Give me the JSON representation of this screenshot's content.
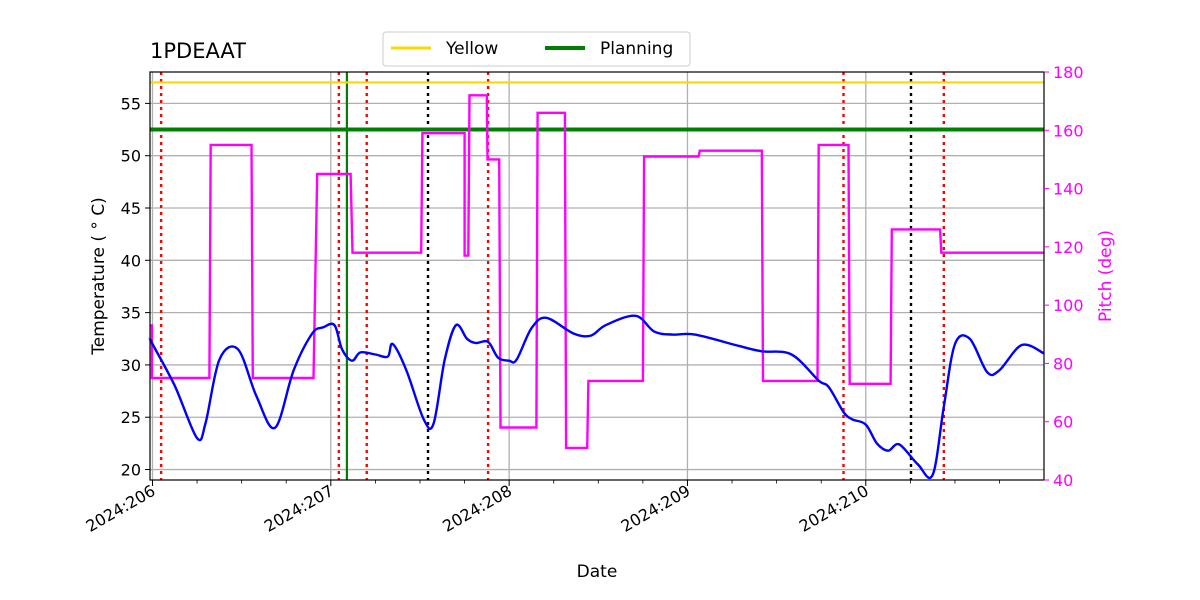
{
  "chart_data": {
    "type": "line",
    "title": "1PDEAAT",
    "xlabel": "Date",
    "ylabel": "Temperature ($^\\circ$C)",
    "ylabel_display": "Temperature ( ° C)",
    "y2label": "Pitch (deg)",
    "xlim": [
      "2024:205:23:40",
      "2024:210:23:59"
    ],
    "ylim": [
      19.0,
      58.0
    ],
    "y2lim": [
      40,
      180
    ],
    "grid": true,
    "legend_position": "top-center",
    "x_ticks": [
      "2024:206",
      "2024:207",
      "2024:208",
      "2024:209",
      "2024:210"
    ],
    "y_ticks": [
      20,
      25,
      30,
      35,
      40,
      45,
      50,
      55
    ],
    "y2_ticks": [
      40,
      60,
      80,
      100,
      120,
      140,
      160,
      180
    ],
    "colors": {
      "temperature": "#0000ff",
      "pitch": "#ff00ff",
      "yellow_limit": "#ffd700",
      "planning_limit": "#008000",
      "red_markers": "#ff0000",
      "black_markers": "#000000",
      "green_marker": "#008000"
    },
    "limits": [
      {
        "name": "Yellow",
        "value": 57.0
      },
      {
        "name": "Planning",
        "value": 52.5
      }
    ],
    "red_vertical_lines": [
      "2024:206:01:10",
      "2024:207:01:05",
      "2024:207:04:50",
      "2024:207:21:10",
      "2024:209:21:00",
      "2024:210:10:30"
    ],
    "black_vertical_lines": [
      "2024:207:13:05",
      "2024:210:06:05"
    ],
    "green_vertical_lines": [
      "2024:207:02:10"
    ],
    "temperature_series": {
      "x": [
        "2024:205:23:40",
        "2024:206:00:00",
        "2024:206:03:00",
        "2024:206:06:00",
        "2024:206:07:10",
        "2024:206:09:00",
        "2024:206:11:30",
        "2024:206:14:00",
        "2024:206:16:30",
        "2024:206:19:00",
        "2024:206:21:30",
        "2024:206:23:00",
        "2024:207:00:30",
        "2024:207:01:30",
        "2024:207:02:50",
        "2024:207:04:00",
        "2024:207:06:00",
        "2024:207:07:40",
        "2024:207:08:20",
        "2024:207:10:10",
        "2024:207:12:30",
        "2024:207:13:50",
        "2024:207:15:20",
        "2024:207:16:50",
        "2024:207:18:20",
        "2024:207:19:30",
        "2024:207:21:10",
        "2024:207:22:30",
        "2024:208:00:00",
        "2024:208:01:00",
        "2024:208:03:00",
        "2024:208:05:00",
        "2024:208:08:40",
        "2024:208:11:00",
        "2024:208:13:00",
        "2024:208:17:00",
        "2024:208:19:30",
        "2024:208:22:00",
        "2024:209:01:00",
        "2024:209:07:00",
        "2024:209:10:00",
        "2024:209:14:00",
        "2024:209:17:40",
        "2024:209:19:00",
        "2024:209:21:00",
        "2024:209:22:10",
        "2024:210:00:00",
        "2024:210:01:30",
        "2024:210:03:00",
        "2024:210:04:30",
        "2024:210:07:00",
        "2024:210:09:00",
        "2024:210:10:30",
        "2024:210:12:00",
        "2024:210:14:00",
        "2024:210:16:20",
        "2024:210:18:00",
        "2024:210:21:00",
        "2024:210:23:59"
      ],
      "y": [
        32.5,
        32.0,
        28.0,
        23.0,
        24.5,
        30.5,
        31.5,
        27.0,
        24.0,
        29.5,
        33.0,
        33.6,
        33.8,
        31.5,
        30.4,
        31.2,
        31.0,
        30.8,
        32.0,
        29.5,
        24.8,
        24.4,
        30.5,
        33.8,
        32.5,
        32.1,
        32.2,
        30.7,
        30.4,
        30.5,
        33.5,
        34.5,
        33.0,
        32.8,
        33.8,
        34.7,
        33.2,
        32.9,
        32.9,
        31.8,
        31.3,
        31.0,
        28.5,
        27.9,
        25.5,
        24.8,
        24.3,
        22.5,
        21.8,
        22.4,
        20.5,
        19.5,
        26.0,
        32.0,
        32.5,
        29.3,
        29.5,
        31.9,
        31.1
      ]
    },
    "pitch_series": {
      "steps": [
        {
          "from": "2024:205:23:40",
          "to": "2024:205:23:55",
          "value": 93
        },
        {
          "from": "2024:205:23:55",
          "to": "2024:206:07:40",
          "value": 75
        },
        {
          "from": "2024:206:07:50",
          "to": "2024:206:13:20",
          "value": 155
        },
        {
          "from": "2024:206:13:30",
          "to": "2024:206:21:40",
          "value": 75
        },
        {
          "from": "2024:206:22:10",
          "to": "2024:207:02:40",
          "value": 145
        },
        {
          "from": "2024:207:02:55",
          "to": "2024:207:12:10",
          "value": 118
        },
        {
          "from": "2024:207:12:20",
          "to": "2024:207:18:00",
          "value": 159
        },
        {
          "from": "2024:207:18:00",
          "to": "2024:207:18:30",
          "value": 117
        },
        {
          "from": "2024:207:18:40",
          "to": "2024:207:21:00",
          "value": 172
        },
        {
          "from": "2024:207:21:05",
          "to": "2024:207:22:40",
          "value": 150
        },
        {
          "from": "2024:207:22:50",
          "to": "2024:208:03:40",
          "value": 58
        },
        {
          "from": "2024:208:03:50",
          "to": "2024:208:07:30",
          "value": 166
        },
        {
          "from": "2024:208:07:40",
          "to": "2024:208:10:30",
          "value": 51
        },
        {
          "from": "2024:208:10:40",
          "to": "2024:208:18:00",
          "value": 74
        },
        {
          "from": "2024:208:18:10",
          "to": "2024:209:01:30",
          "value": 151
        },
        {
          "from": "2024:209:01:40",
          "to": "2024:209:10:00",
          "value": 153
        },
        {
          "from": "2024:209:10:10",
          "to": "2024:209:17:30",
          "value": 74
        },
        {
          "from": "2024:209:17:40",
          "to": "2024:209:21:40",
          "value": 155
        },
        {
          "from": "2024:209:21:50",
          "to": "2024:210:03:20",
          "value": 73
        },
        {
          "from": "2024:210:03:30",
          "to": "2024:210:10:00",
          "value": 126
        },
        {
          "from": "2024:210:10:10",
          "to": "2024:210:23:59",
          "value": 118
        }
      ]
    }
  },
  "legend": {
    "items": [
      {
        "label": "Yellow",
        "color": "#ffd700"
      },
      {
        "label": "Planning",
        "color": "#008000"
      }
    ]
  }
}
